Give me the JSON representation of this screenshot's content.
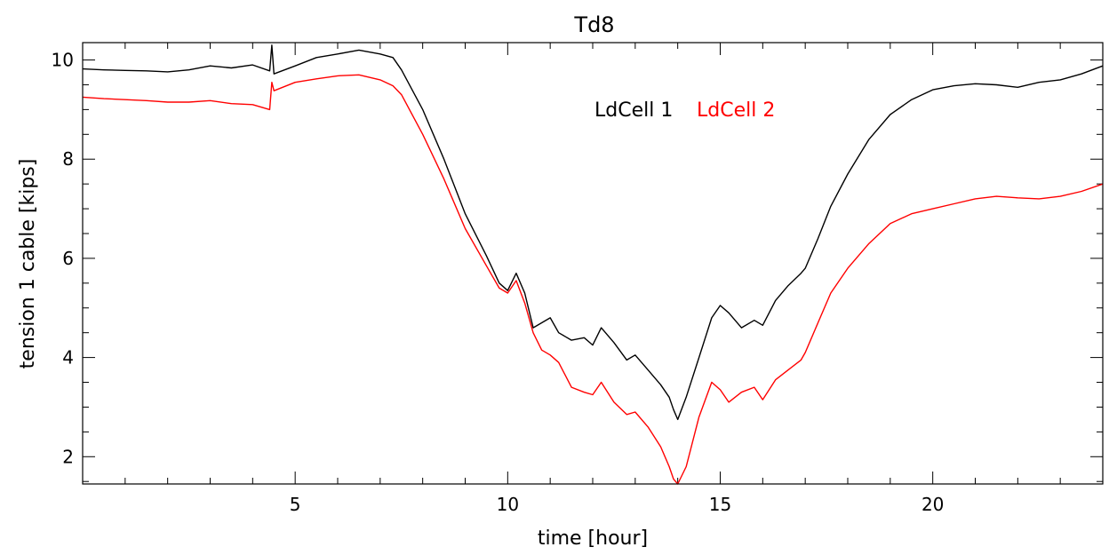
{
  "chart_data": {
    "type": "line",
    "title": "Td8",
    "xlabel": "time [hour]",
    "ylabel": "tension 1 cable [kips]",
    "xlim": [
      0,
      24
    ],
    "ylim": [
      1.45,
      10.35
    ],
    "x_ticks": [
      5,
      10,
      15,
      20
    ],
    "y_ticks": [
      2,
      4,
      6,
      8,
      10
    ],
    "grid": false,
    "legend_position": "top-right",
    "series": [
      {
        "name": "LdCell 1",
        "color": "#000000",
        "x": [
          0,
          0.5,
          1,
          1.5,
          2,
          2.5,
          3,
          3.5,
          4,
          4.4,
          4.45,
          4.5,
          5,
          5.5,
          6,
          6.5,
          7,
          7.3,
          7.5,
          8,
          8.5,
          9,
          9.5,
          9.8,
          10,
          10.2,
          10.4,
          10.6,
          10.8,
          11,
          11.2,
          11.5,
          11.8,
          12,
          12.2,
          12.5,
          12.8,
          13,
          13.3,
          13.6,
          13.8,
          13.9,
          14,
          14.2,
          14.5,
          14.8,
          15,
          15.2,
          15.5,
          15.8,
          16,
          16.3,
          16.6,
          16.9,
          17,
          17.3,
          17.6,
          18,
          18.5,
          19,
          19.5,
          20,
          20.5,
          21,
          21.5,
          22,
          22.5,
          23,
          23.5,
          24
        ],
        "values": [
          9.82,
          9.8,
          9.79,
          9.78,
          9.76,
          9.8,
          9.88,
          9.84,
          9.9,
          9.78,
          10.3,
          9.72,
          9.88,
          10.05,
          10.12,
          10.2,
          10.12,
          10.05,
          9.8,
          9.0,
          8.0,
          6.9,
          6.05,
          5.5,
          5.35,
          5.7,
          5.3,
          4.6,
          4.7,
          4.8,
          4.5,
          4.35,
          4.4,
          4.25,
          4.6,
          4.3,
          3.95,
          4.05,
          3.75,
          3.45,
          3.2,
          2.95,
          2.75,
          3.2,
          4.0,
          4.8,
          5.05,
          4.9,
          4.6,
          4.75,
          4.65,
          5.15,
          5.45,
          5.7,
          5.8,
          6.4,
          7.05,
          7.7,
          8.4,
          8.9,
          9.2,
          9.4,
          9.48,
          9.52,
          9.5,
          9.45,
          9.55,
          9.6,
          9.72,
          9.88
        ]
      },
      {
        "name": "LdCell 2",
        "color": "#ff0000",
        "x": [
          0,
          0.5,
          1,
          1.5,
          2,
          2.5,
          3,
          3.5,
          4,
          4.4,
          4.45,
          4.5,
          5,
          5.5,
          6,
          6.5,
          7,
          7.3,
          7.5,
          8,
          8.5,
          9,
          9.5,
          9.8,
          10,
          10.2,
          10.4,
          10.6,
          10.8,
          11,
          11.2,
          11.5,
          11.8,
          12,
          12.2,
          12.5,
          12.8,
          13,
          13.3,
          13.6,
          13.8,
          13.9,
          14,
          14.2,
          14.5,
          14.8,
          15,
          15.2,
          15.5,
          15.8,
          16,
          16.3,
          16.6,
          16.9,
          17,
          17.3,
          17.6,
          18,
          18.5,
          19,
          19.5,
          20,
          20.5,
          21,
          21.5,
          22,
          22.5,
          23,
          23.5,
          24
        ],
        "values": [
          9.25,
          9.22,
          9.2,
          9.18,
          9.15,
          9.15,
          9.18,
          9.12,
          9.1,
          9.0,
          9.55,
          9.38,
          9.55,
          9.62,
          9.68,
          9.7,
          9.6,
          9.48,
          9.3,
          8.5,
          7.6,
          6.6,
          5.85,
          5.4,
          5.3,
          5.55,
          5.1,
          4.5,
          4.15,
          4.05,
          3.9,
          3.4,
          3.3,
          3.25,
          3.5,
          3.1,
          2.85,
          2.9,
          2.6,
          2.2,
          1.8,
          1.55,
          1.45,
          1.8,
          2.8,
          3.5,
          3.35,
          3.1,
          3.3,
          3.4,
          3.15,
          3.55,
          3.75,
          3.95,
          4.1,
          4.7,
          5.3,
          5.8,
          6.3,
          6.7,
          6.9,
          7.0,
          7.1,
          7.2,
          7.25,
          7.22,
          7.2,
          7.25,
          7.35,
          7.5
        ]
      }
    ]
  }
}
